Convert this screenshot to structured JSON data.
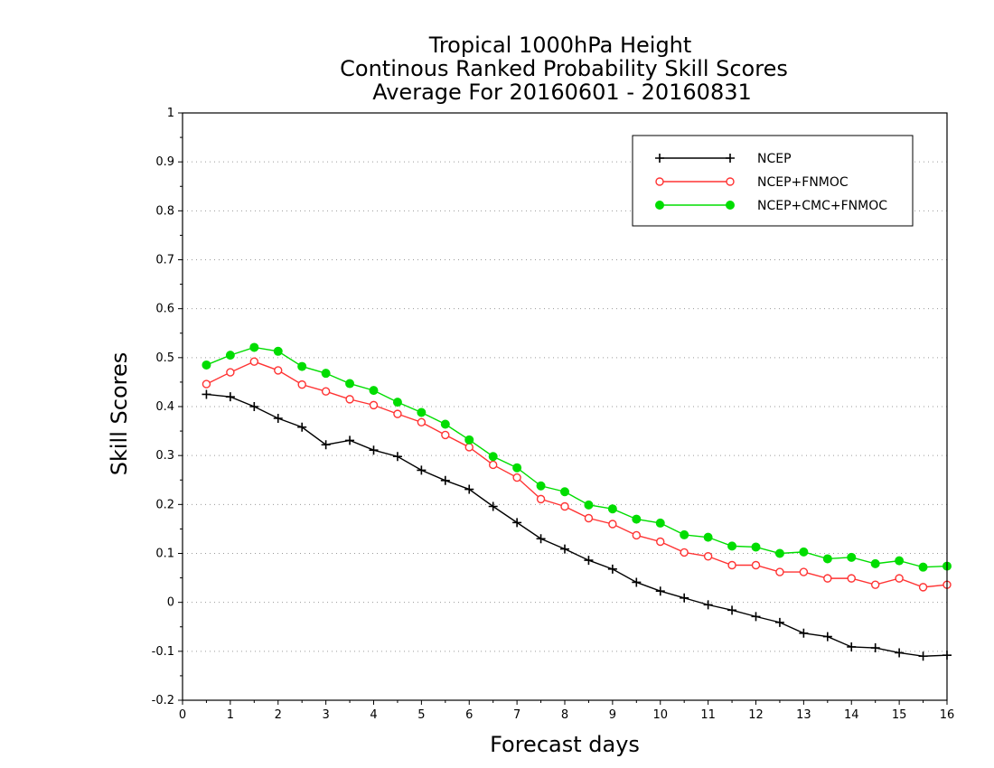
{
  "chart_data": {
    "type": "line",
    "title": [
      "Tropical 1000hPa Height",
      "Continous Ranked Probability Skill Scores",
      "Average For 20160601 - 20160831"
    ],
    "xlabel": "Forecast days",
    "ylabel": "Skill Scores",
    "xlim": [
      0,
      16
    ],
    "ylim": [
      -0.2,
      1
    ],
    "x_ticks": [
      "0",
      "1",
      "2",
      "3",
      "4",
      "5",
      "6",
      "7",
      "8",
      "9",
      "10",
      "11",
      "12",
      "13",
      "14",
      "15",
      "16"
    ],
    "y_ticks": [
      "-0.2",
      "-0.1",
      "0",
      "0.1",
      "0.2",
      "0.3",
      "0.4",
      "0.5",
      "0.6",
      "0.7",
      "0.8",
      "0.9",
      "1"
    ],
    "grid": true,
    "legend_position": "top-right",
    "x": [
      0.5,
      1,
      1.5,
      2,
      2.5,
      3,
      3.5,
      4,
      4.5,
      5,
      5.5,
      6,
      6.5,
      7,
      7.5,
      8,
      8.5,
      9,
      9.5,
      10,
      10.5,
      11,
      11.5,
      12,
      12.5,
      13,
      13.5,
      14,
      14.5,
      15,
      15.5,
      16
    ],
    "series": [
      {
        "name": "NCEP",
        "color": "#000000",
        "marker": "plus",
        "values": [
          0.425,
          0.42,
          0.4,
          0.376,
          0.358,
          0.322,
          0.331,
          0.311,
          0.298,
          0.27,
          0.249,
          0.231,
          0.196,
          0.163,
          0.13,
          0.109,
          0.086,
          0.068,
          0.041,
          0.023,
          0.009,
          -0.005,
          -0.016,
          -0.029,
          -0.041,
          -0.063,
          -0.07,
          -0.091,
          -0.093,
          -0.103,
          -0.11,
          -0.108
        ]
      },
      {
        "name": "NCEP+FNMOC",
        "color": "#ff3333",
        "marker": "circle-open",
        "values": [
          0.446,
          0.47,
          0.492,
          0.474,
          0.445,
          0.431,
          0.415,
          0.403,
          0.385,
          0.368,
          0.342,
          0.317,
          0.281,
          0.255,
          0.211,
          0.196,
          0.172,
          0.16,
          0.137,
          0.124,
          0.102,
          0.094,
          0.076,
          0.076,
          0.062,
          0.062,
          0.049,
          0.049,
          0.036,
          0.049,
          0.031,
          0.036
        ]
      },
      {
        "name": "NCEP+CMC+FNMOC",
        "color": "#00dd00",
        "marker": "circle-filled",
        "values": [
          0.485,
          0.505,
          0.521,
          0.513,
          0.482,
          0.468,
          0.447,
          0.433,
          0.409,
          0.388,
          0.364,
          0.332,
          0.298,
          0.275,
          0.238,
          0.226,
          0.199,
          0.191,
          0.17,
          0.162,
          0.138,
          0.133,
          0.115,
          0.113,
          0.1,
          0.103,
          0.089,
          0.092,
          0.079,
          0.085,
          0.072,
          0.074
        ]
      }
    ]
  }
}
